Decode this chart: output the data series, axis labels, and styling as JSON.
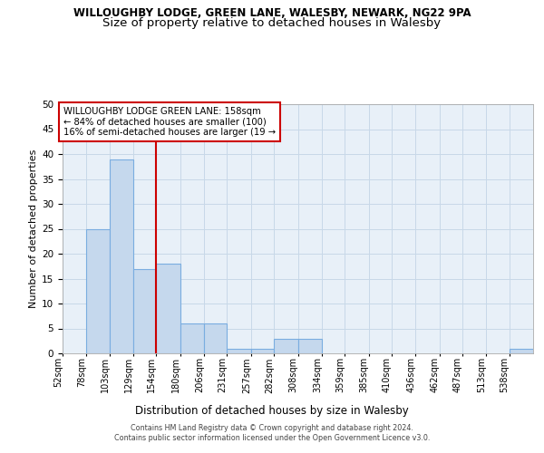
{
  "title": "WILLOUGHBY LODGE, GREEN LANE, WALESBY, NEWARK, NG22 9PA",
  "subtitle": "Size of property relative to detached houses in Walesby",
  "xlabel": "Distribution of detached houses by size in Walesby",
  "ylabel": "Number of detached properties",
  "bin_edges": [
    52,
    78,
    103,
    129,
    154,
    180,
    206,
    231,
    257,
    282,
    308,
    334,
    359,
    385,
    410,
    436,
    462,
    487,
    513,
    538,
    564
  ],
  "bar_values": [
    0,
    25,
    39,
    17,
    18,
    6,
    6,
    1,
    1,
    3,
    3,
    0,
    0,
    0,
    0,
    0,
    0,
    0,
    0,
    1
  ],
  "bar_color": "#c5d8ed",
  "bar_edge_color": "#7aade0",
  "red_line_x": 154,
  "annotation_text": "WILLOUGHBY LODGE GREEN LANE: 158sqm\n← 84% of detached houses are smaller (100)\n16% of semi-detached houses are larger (19 →",
  "annotation_box_color": "#ffffff",
  "annotation_border_color": "#cc0000",
  "red_line_color": "#cc0000",
  "ylim": [
    0,
    50
  ],
  "yticks": [
    0,
    5,
    10,
    15,
    20,
    25,
    30,
    35,
    40,
    45,
    50
  ],
  "grid_color": "#c8d8e8",
  "bg_color": "#e8f0f8",
  "footer_text": "Contains HM Land Registry data © Crown copyright and database right 2024.\nContains public sector information licensed under the Open Government Licence v3.0.",
  "title_fontsize": 8.5,
  "subtitle_fontsize": 9.5,
  "tick_fontsize": 7.0,
  "ylabel_fontsize": 8.0
}
